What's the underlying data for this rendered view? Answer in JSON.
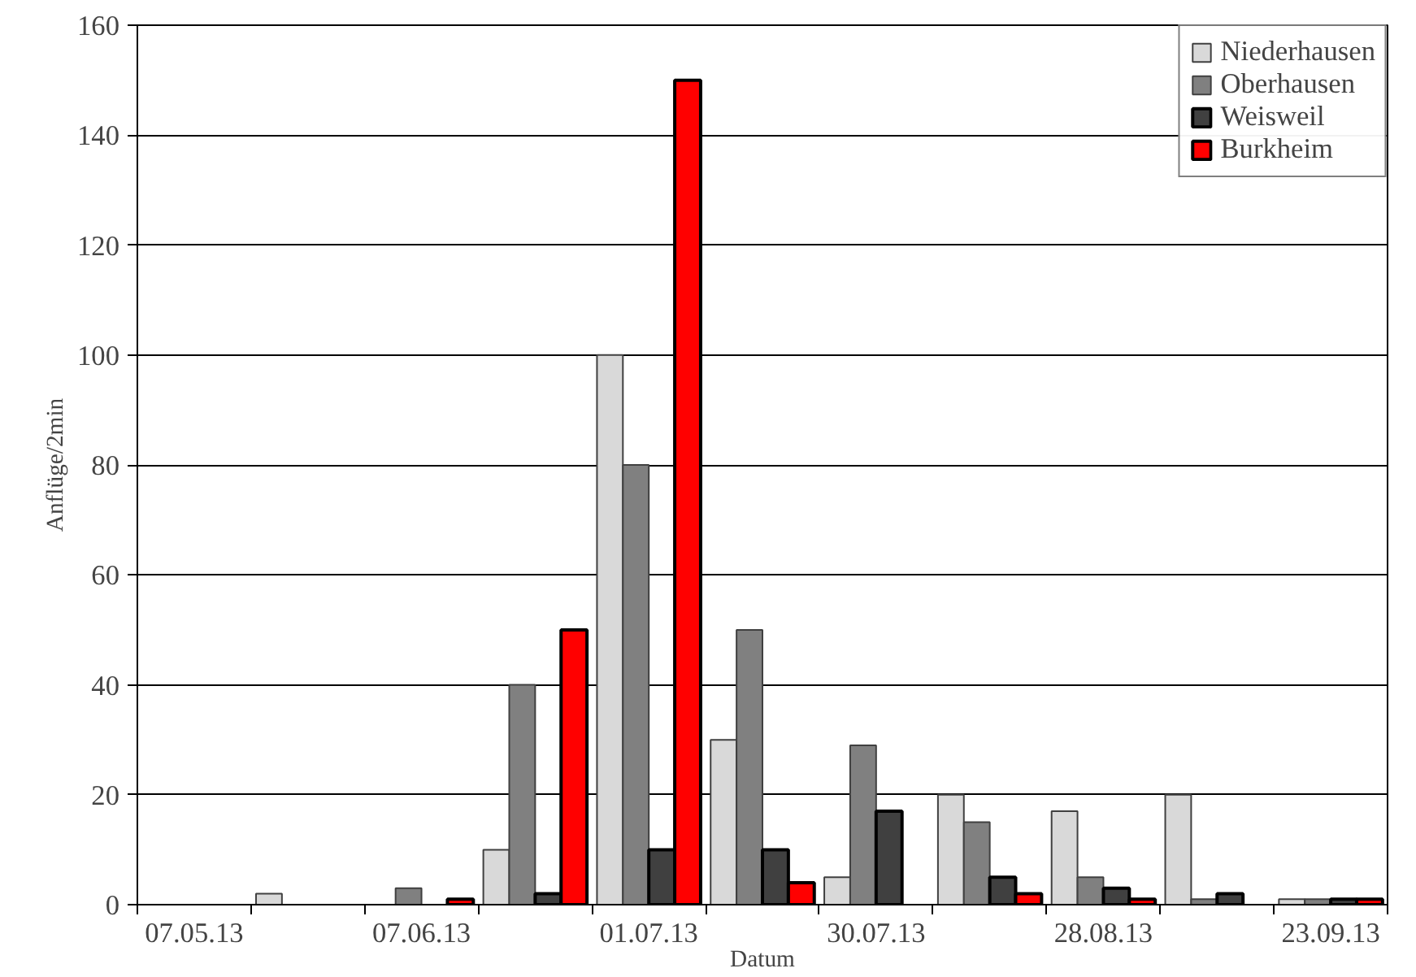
{
  "chart_data": {
    "type": "bar",
    "xlabel": "Datum",
    "ylabel": "Anflüge/2min",
    "categories": [
      "07.05.13",
      null,
      "07.06.13",
      null,
      "01.07.13",
      null,
      "30.07.13",
      null,
      "28.08.13",
      null,
      "23.09.13"
    ],
    "series": [
      {
        "name": "Niederhausen",
        "color": "#d9d9d9",
        "values": [
          0,
          2,
          0,
          10,
          100,
          30,
          5,
          20,
          17,
          20,
          1
        ]
      },
      {
        "name": "Oberhausen",
        "color": "#808080",
        "values": [
          0,
          0,
          3,
          40,
          80,
          50,
          29,
          15,
          5,
          1,
          1
        ]
      },
      {
        "name": "Weisweil",
        "color": "#404040",
        "values": [
          0,
          0,
          0,
          2,
          10,
          10,
          17,
          5,
          3,
          2,
          1
        ]
      },
      {
        "name": "Burkheim",
        "color": "#ff0000",
        "values": [
          0,
          0,
          1,
          50,
          150,
          4,
          0,
          2,
          1,
          0,
          1
        ]
      }
    ],
    "ylim": [
      0,
      160
    ],
    "yticks": [
      0,
      20,
      40,
      60,
      80,
      100,
      120,
      140,
      160
    ],
    "grid": "y",
    "legend": "top right"
  }
}
